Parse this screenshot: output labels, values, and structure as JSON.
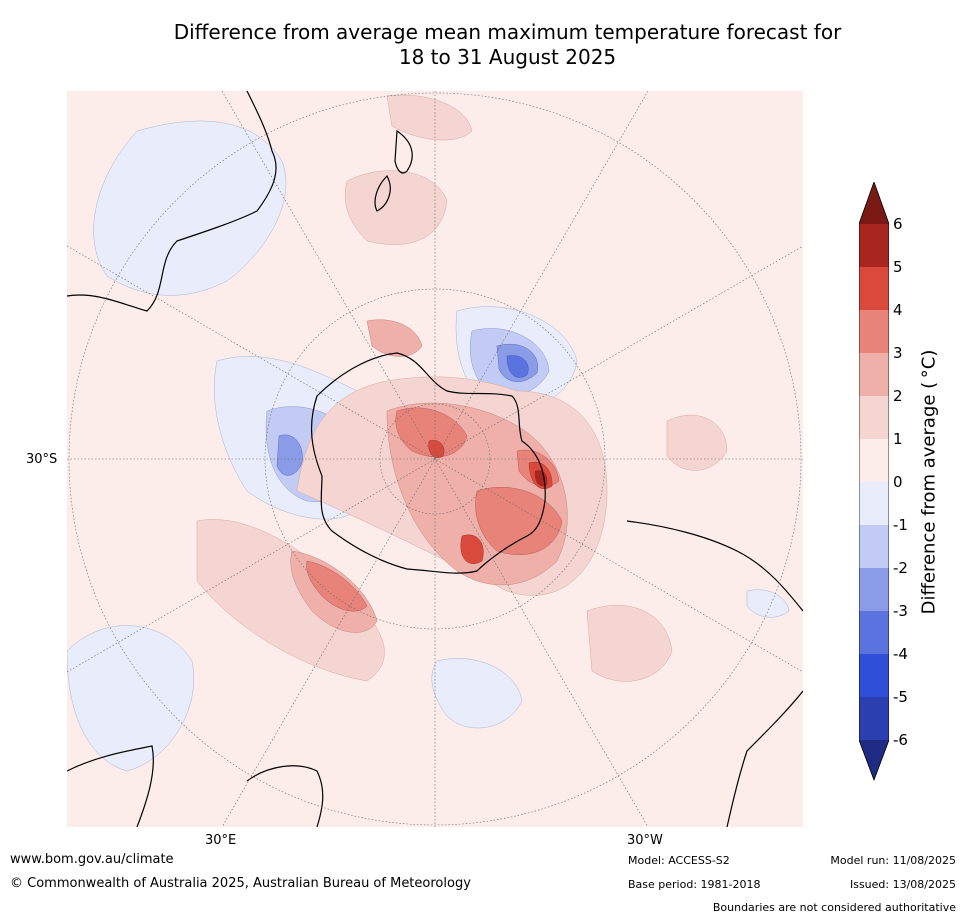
{
  "title_line1": "Difference from average mean maximum temperature forecast for",
  "title_line2": "18 to 31 August 2025",
  "map": {
    "lat_label": "30°S",
    "lon_labels": {
      "east": "30°E",
      "west": "30°W"
    }
  },
  "colorbar": {
    "label": "Difference from average ( °C)",
    "ticks": [
      "6",
      "5",
      "4",
      "3",
      "2",
      "1",
      "0",
      "-1",
      "-2",
      "-3",
      "-4",
      "-5",
      "-6"
    ],
    "colors": {
      "above6": "#7b1a14",
      "c5_6": "#a82520",
      "c4_5": "#d94a3d",
      "c3_4": "#e8837a",
      "c2_3": "#efb0a9",
      "c1_2": "#f5d5d1",
      "c0_1": "#fcecea",
      "cm1_0": "#e8ecfb",
      "cm2_m1": "#c2cbf3",
      "cm3_m2": "#8a9be8",
      "cm4_m3": "#5a73df",
      "cm5_m4": "#2f4fd9",
      "cm6_m5": "#2b3fb0",
      "below6": "#1e2c84"
    }
  },
  "footer": {
    "url": "www.bom.gov.au/climate",
    "copyright": "© Commonwealth of Australia 2025, Australian Bureau of Meteorology",
    "model": "Model: ACCESS-S2",
    "base_period": "Base period: 1981-2018",
    "model_run": "Model run: 11/08/2025",
    "issued": "Issued: 13/08/2025",
    "disclaimer": "Boundaries are not considered authoritative"
  }
}
